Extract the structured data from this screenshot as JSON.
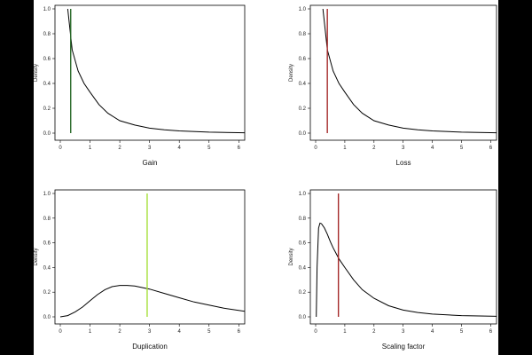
{
  "chart_data": [
    {
      "type": "line",
      "xlabel": "Gain",
      "ylabel": "Density",
      "xlim": [
        0,
        6.2
      ],
      "ylim": [
        0,
        1.0
      ],
      "xticks": [
        0,
        1,
        2,
        3,
        4,
        5,
        6
      ],
      "yticks": [
        0.0,
        0.2,
        0.4,
        0.6,
        0.8,
        1.0
      ],
      "curve": {
        "x": [
          0.25,
          0.4,
          0.6,
          0.8,
          1.0,
          1.3,
          1.6,
          2.0,
          2.5,
          3.0,
          3.5,
          4.0,
          5.0,
          6.2
        ],
        "y": [
          1.0,
          0.67,
          0.5,
          0.4,
          0.33,
          0.23,
          0.16,
          0.1,
          0.065,
          0.04,
          0.027,
          0.018,
          0.008,
          0.003
        ]
      },
      "marker": {
        "x": 0.35,
        "color": "#2a6a2a"
      }
    },
    {
      "type": "line",
      "xlabel": "Loss",
      "ylabel": "Density",
      "xlim": [
        0,
        6.2
      ],
      "ylim": [
        0,
        1.0
      ],
      "xticks": [
        0,
        1,
        2,
        3,
        4,
        5,
        6
      ],
      "yticks": [
        0.0,
        0.2,
        0.4,
        0.6,
        0.8,
        1.0
      ],
      "curve": {
        "x": [
          0.25,
          0.4,
          0.6,
          0.8,
          1.0,
          1.3,
          1.6,
          2.0,
          2.5,
          3.0,
          3.5,
          4.0,
          5.0,
          6.2
        ],
        "y": [
          1.0,
          0.67,
          0.5,
          0.4,
          0.33,
          0.23,
          0.16,
          0.1,
          0.065,
          0.04,
          0.027,
          0.018,
          0.008,
          0.003
        ]
      },
      "marker": {
        "x": 0.4,
        "color": "#a52a2a"
      }
    },
    {
      "type": "line",
      "xlabel": "Duplication",
      "ylabel": "Density",
      "xlim": [
        0,
        6.2
      ],
      "ylim": [
        0,
        1.0
      ],
      "xticks": [
        0,
        1,
        2,
        3,
        4,
        5,
        6
      ],
      "yticks": [
        0.0,
        0.2,
        0.4,
        0.6,
        0.8,
        1.0
      ],
      "curve": {
        "x": [
          0,
          0.25,
          0.5,
          0.75,
          1.0,
          1.25,
          1.5,
          1.75,
          2.0,
          2.25,
          2.5,
          3.0,
          3.5,
          4.0,
          4.5,
          5.0,
          5.5,
          6.2
        ],
        "y": [
          0.0,
          0.01,
          0.04,
          0.08,
          0.13,
          0.18,
          0.22,
          0.245,
          0.255,
          0.255,
          0.25,
          0.225,
          0.19,
          0.155,
          0.12,
          0.095,
          0.07,
          0.045
        ]
      },
      "marker": {
        "x": 2.92,
        "color": "#a6e03a"
      }
    },
    {
      "type": "line",
      "xlabel": "Scaling factor",
      "ylabel": "Density",
      "xlim": [
        0,
        6.2
      ],
      "ylim": [
        0,
        1.0
      ],
      "xticks": [
        0,
        1,
        2,
        3,
        4,
        5,
        6
      ],
      "yticks": [
        0.0,
        0.2,
        0.4,
        0.6,
        0.8,
        1.0
      ],
      "curve": {
        "x": [
          0.02,
          0.05,
          0.1,
          0.15,
          0.2,
          0.3,
          0.4,
          0.5,
          0.6,
          0.8,
          1.0,
          1.3,
          1.6,
          2.0,
          2.5,
          3.0,
          3.5,
          4.0,
          5.0,
          6.2
        ],
        "y": [
          0.0,
          0.4,
          0.72,
          0.76,
          0.755,
          0.72,
          0.67,
          0.61,
          0.56,
          0.47,
          0.4,
          0.3,
          0.22,
          0.15,
          0.09,
          0.055,
          0.035,
          0.022,
          0.01,
          0.004
        ]
      },
      "marker": {
        "x": 0.78,
        "color": "#a52a2a"
      }
    }
  ]
}
